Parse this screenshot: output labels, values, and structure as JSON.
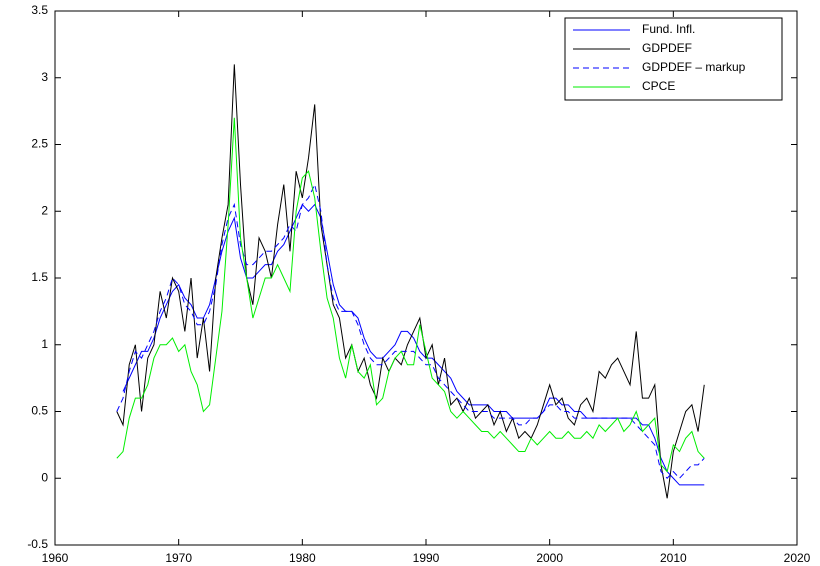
{
  "chart_data": {
    "type": "line",
    "x": [
      1965,
      1965.5,
      1966,
      1966.5,
      1967,
      1967.5,
      1968,
      1968.5,
      1969,
      1969.5,
      1970,
      1970.5,
      1971,
      1971.5,
      1972,
      1972.5,
      1973,
      1973.5,
      1974,
      1974.5,
      1975,
      1975.5,
      1976,
      1976.5,
      1977,
      1977.5,
      1978,
      1978.5,
      1979,
      1979.5,
      1980,
      1980.5,
      1981,
      1981.5,
      1982,
      1982.5,
      1983,
      1983.5,
      1984,
      1984.5,
      1985,
      1985.5,
      1986,
      1986.5,
      1987,
      1987.5,
      1988,
      1988.5,
      1989,
      1989.5,
      1990,
      1990.5,
      1991,
      1991.5,
      1992,
      1992.5,
      1993,
      1993.5,
      1994,
      1994.5,
      1995,
      1995.5,
      1996,
      1996.5,
      1997,
      1997.5,
      1998,
      1998.5,
      1999,
      1999.5,
      2000,
      2000.5,
      2001,
      2001.5,
      2002,
      2002.5,
      2003,
      2003.5,
      2004,
      2004.5,
      2005,
      2005.5,
      2006,
      2006.5,
      2007,
      2007.5,
      2008,
      2008.5,
      2009,
      2009.5,
      2010,
      2010.5,
      2011,
      2011.5,
      2012,
      2012.5
    ],
    "series": [
      {
        "name": "Fund. Infl.",
        "color": "#0000ff",
        "dashed": false,
        "values": [
          null,
          0.65,
          0.75,
          0.85,
          0.95,
          0.95,
          1.05,
          1.2,
          1.3,
          1.4,
          1.45,
          1.35,
          1.3,
          1.2,
          1.2,
          1.3,
          1.5,
          1.7,
          1.85,
          1.95,
          1.65,
          1.5,
          1.5,
          1.55,
          1.6,
          1.6,
          1.7,
          1.75,
          1.85,
          1.95,
          2.05,
          2.0,
          2.05,
          1.95,
          1.7,
          1.45,
          1.3,
          1.25,
          1.25,
          1.2,
          1.05,
          0.95,
          0.9,
          0.9,
          0.95,
          1.0,
          1.1,
          1.1,
          1.05,
          0.95,
          0.9,
          0.9,
          0.85,
          0.8,
          0.75,
          0.65,
          0.6,
          0.55,
          0.55,
          0.55,
          0.55,
          0.5,
          0.5,
          0.5,
          0.45,
          0.45,
          0.45,
          0.45,
          0.45,
          0.5,
          0.6,
          0.6,
          0.55,
          0.55,
          0.5,
          0.5,
          0.45,
          0.45,
          0.45,
          0.45,
          0.45,
          0.45,
          0.45,
          0.45,
          0.45,
          0.4,
          0.4,
          0.3,
          0.15,
          0.05,
          0.0,
          -0.05,
          -0.05,
          -0.05,
          -0.05,
          -0.05
        ]
      },
      {
        "name": "GDPDEF",
        "color": "#000000",
        "dashed": false,
        "values": [
          0.5,
          0.4,
          0.85,
          1.0,
          0.5,
          0.9,
          1.0,
          1.4,
          1.2,
          1.5,
          1.4,
          1.1,
          1.5,
          0.9,
          1.2,
          0.8,
          1.5,
          1.8,
          2.05,
          3.1,
          2.2,
          1.5,
          1.3,
          1.8,
          1.7,
          1.5,
          1.9,
          2.2,
          1.7,
          2.3,
          2.1,
          2.4,
          2.8,
          1.9,
          1.6,
          1.3,
          1.2,
          0.9,
          1.0,
          0.8,
          0.9,
          0.7,
          0.6,
          0.9,
          0.8,
          0.9,
          0.85,
          1.0,
          1.1,
          1.2,
          0.9,
          1.0,
          0.7,
          0.9,
          0.55,
          0.6,
          0.5,
          0.6,
          0.45,
          0.5,
          0.55,
          0.4,
          0.5,
          0.35,
          0.45,
          0.3,
          0.35,
          0.3,
          0.4,
          0.55,
          0.7,
          0.55,
          0.6,
          0.45,
          0.4,
          0.55,
          0.6,
          0.5,
          0.8,
          0.75,
          0.85,
          0.9,
          0.8,
          0.7,
          1.1,
          0.6,
          0.6,
          0.7,
          0.1,
          -0.15,
          0.2,
          0.35,
          0.5,
          0.55,
          0.35,
          0.7
        ]
      },
      {
        "name": "GDPDEF – markup",
        "color": "#0000ff",
        "dashed": true,
        "values": [
          0.5,
          0.6,
          0.8,
          0.95,
          0.9,
          1.0,
          1.1,
          1.25,
          1.35,
          1.5,
          1.45,
          1.3,
          1.25,
          1.15,
          1.15,
          1.25,
          1.45,
          1.75,
          1.95,
          2.05,
          1.75,
          1.6,
          1.6,
          1.65,
          1.7,
          1.7,
          1.75,
          1.8,
          1.9,
          1.85,
          2.05,
          2.1,
          2.2,
          2.0,
          1.6,
          1.35,
          1.25,
          1.25,
          1.25,
          1.15,
          1.0,
          0.9,
          0.85,
          0.85,
          0.9,
          0.95,
          0.95,
          0.95,
          0.95,
          0.9,
          0.85,
          0.85,
          0.75,
          0.7,
          0.65,
          0.6,
          0.55,
          0.5,
          0.5,
          0.5,
          0.5,
          0.45,
          0.45,
          0.45,
          0.45,
          0.4,
          0.4,
          0.45,
          0.45,
          0.5,
          0.55,
          0.55,
          0.5,
          0.5,
          0.45,
          0.45,
          0.45,
          0.45,
          0.45,
          0.45,
          0.45,
          0.45,
          0.45,
          0.45,
          0.4,
          0.35,
          0.3,
          0.25,
          0.05,
          0.0,
          0.05,
          0.0,
          0.05,
          0.1,
          0.1,
          0.15
        ]
      },
      {
        "name": "CPCE",
        "color": "#00ee00",
        "dashed": false,
        "values": [
          0.15,
          0.2,
          0.45,
          0.6,
          0.6,
          0.7,
          0.9,
          1.0,
          1.0,
          1.05,
          0.95,
          1.0,
          0.8,
          0.7,
          0.5,
          0.55,
          0.9,
          1.25,
          1.9,
          2.7,
          1.8,
          1.5,
          1.2,
          1.35,
          1.5,
          1.5,
          1.6,
          1.5,
          1.4,
          2.0,
          2.25,
          2.3,
          2.1,
          1.7,
          1.35,
          1.2,
          0.9,
          0.75,
          1.0,
          0.8,
          0.75,
          0.85,
          0.55,
          0.6,
          0.8,
          0.9,
          0.95,
          0.85,
          0.85,
          1.15,
          0.95,
          0.75,
          0.7,
          0.65,
          0.5,
          0.45,
          0.5,
          0.45,
          0.4,
          0.35,
          0.35,
          0.3,
          0.35,
          0.3,
          0.25,
          0.2,
          0.2,
          0.3,
          0.25,
          0.3,
          0.35,
          0.3,
          0.3,
          0.35,
          0.3,
          0.3,
          0.35,
          0.3,
          0.4,
          0.35,
          0.4,
          0.45,
          0.35,
          0.4,
          0.5,
          0.35,
          0.4,
          0.45,
          0.1,
          0.05,
          0.25,
          0.2,
          0.3,
          0.35,
          0.2,
          0.15
        ]
      }
    ],
    "xlim": [
      1960,
      2020
    ],
    "xticks": [
      1960,
      1970,
      1980,
      1990,
      2000,
      2010,
      2020
    ],
    "ylim": [
      -0.5,
      3.5
    ],
    "yticks": [
      -0.5,
      0,
      0.5,
      1,
      1.5,
      2,
      2.5,
      3,
      3.5
    ],
    "legend": "upper right",
    "grid": false
  }
}
